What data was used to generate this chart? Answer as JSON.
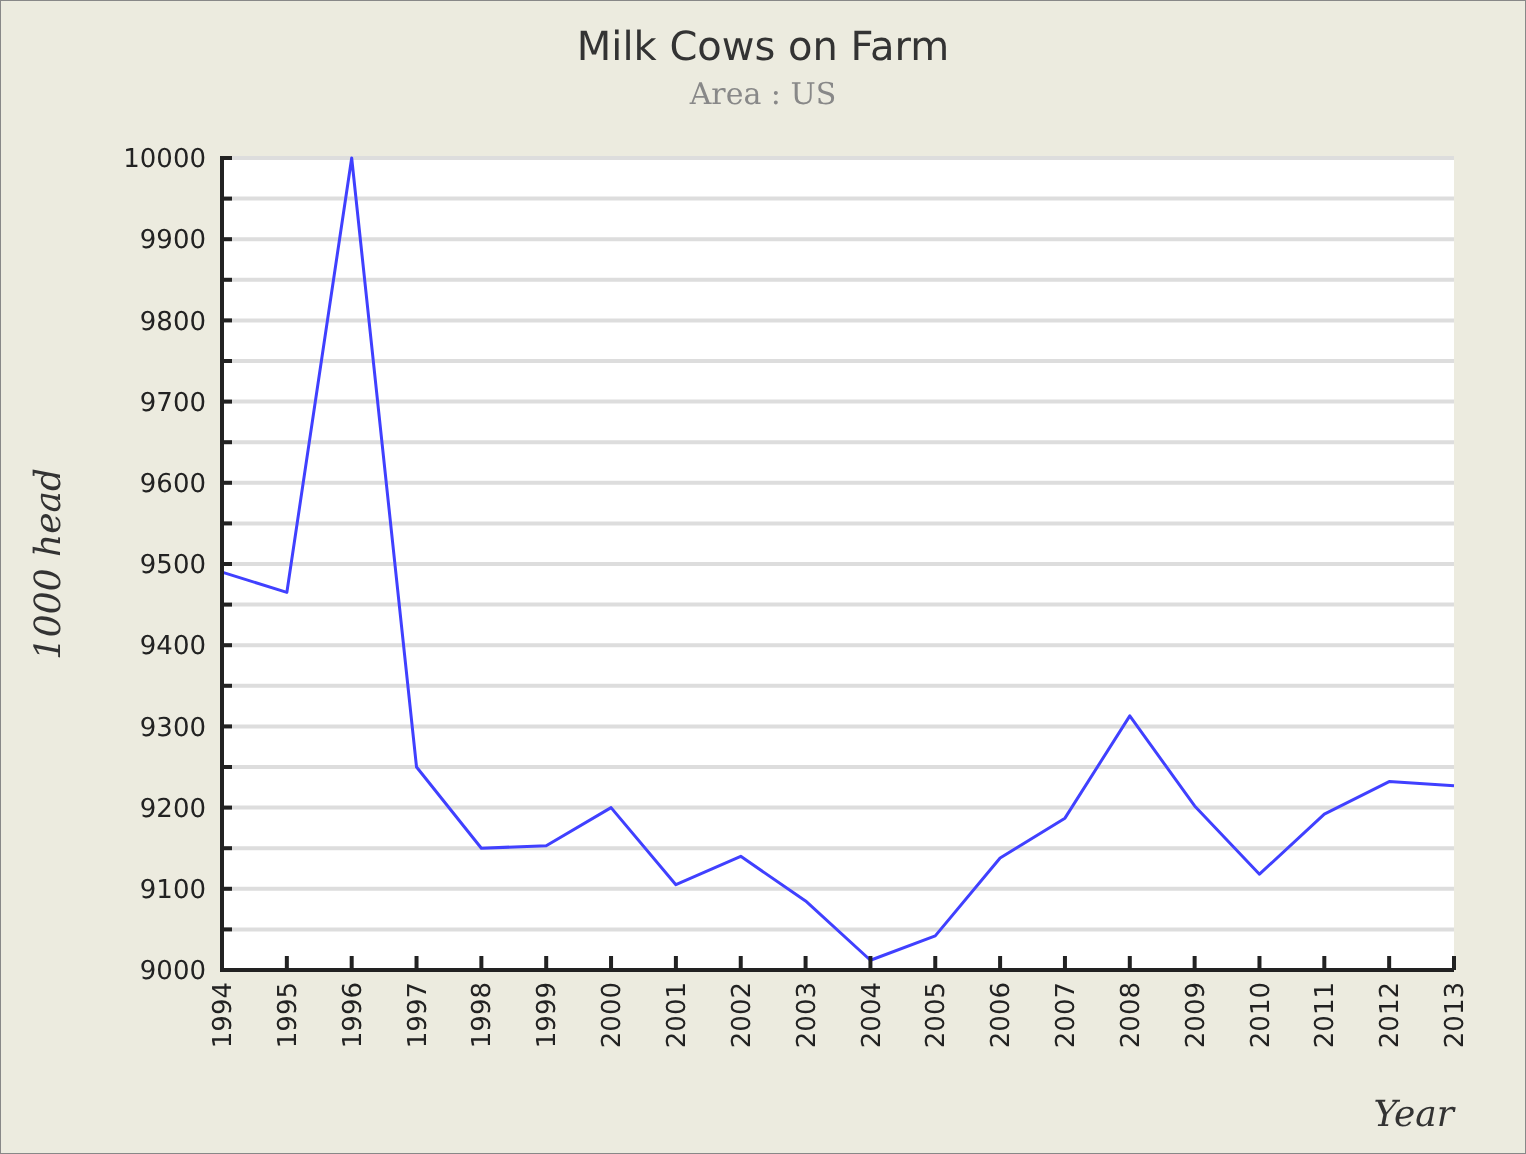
{
  "chart_data": {
    "type": "line",
    "title": "Milk Cows on Farm",
    "subtitle": "Area : US",
    "xlabel": "Year",
    "ylabel": "1000 head",
    "categories": [
      "1994",
      "1995",
      "1996",
      "1997",
      "1998",
      "1999",
      "2000",
      "2001",
      "2002",
      "2003",
      "2004",
      "2005",
      "2006",
      "2007",
      "2008",
      "2009",
      "2010",
      "2011",
      "2012",
      "2013"
    ],
    "series": [
      {
        "color": "#4040ff",
        "values": [
          9490,
          9465,
          10000,
          9250,
          9150,
          9153,
          9200,
          9105,
          9140,
          9085,
          9012,
          9042,
          9138,
          9187,
          9313,
          9202,
          9118,
          9192,
          9232,
          9227
        ]
      }
    ],
    "ylim": [
      9000,
      10000
    ],
    "yticks": [
      9000,
      {
        "value": 9050,
        "label": null
      },
      9100,
      {
        "value": 9150,
        "label": null
      },
      9200,
      {
        "value": 9250,
        "label": null
      },
      9300,
      {
        "value": 9350,
        "label": null
      },
      9400,
      {
        "value": 9450,
        "label": null
      },
      9500,
      {
        "value": 9550,
        "label": null
      },
      9600,
      {
        "value": 9650,
        "label": null
      },
      9700,
      {
        "value": 9750,
        "label": null
      },
      9800,
      {
        "value": 9850,
        "label": null
      },
      9900,
      {
        "value": 9950,
        "label": null
      },
      10000
    ],
    "grid": "y",
    "marker": "none",
    "line_style": "solid"
  }
}
